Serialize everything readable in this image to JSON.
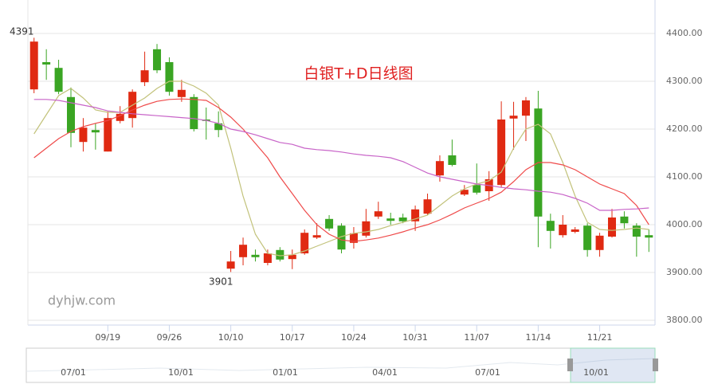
{
  "chart_data": {
    "type": "candlestick",
    "title": "白银T+D日线图",
    "watermark": "dyhjw.com",
    "high_label": "4391",
    "low_label": "3901",
    "categories": [
      null,
      null,
      null,
      null,
      null,
      null,
      "09/19",
      null,
      null,
      null,
      null,
      "09/26",
      null,
      null,
      null,
      null,
      "10/10",
      null,
      null,
      null,
      null,
      "10/17",
      null,
      null,
      null,
      null,
      "10/24",
      null,
      null,
      null,
      null,
      "10/31",
      null,
      null,
      null,
      null,
      "11/07",
      null,
      null,
      null,
      null,
      "11/14",
      null,
      null,
      null,
      null,
      "11/21",
      null,
      null,
      null,
      null
    ],
    "open": [
      4283,
      4340,
      4328,
      4267,
      4173,
      4198,
      4153,
      4217,
      4223,
      4298,
      4367,
      4340,
      4267,
      4267,
      4220,
      4212,
      3908,
      3932,
      3937,
      3920,
      3947,
      3928,
      3940,
      3973,
      4012,
      3998,
      3962,
      3977,
      4017,
      4013,
      4015,
      4007,
      4023,
      4103,
      4145,
      4063,
      4083,
      4070,
      4083,
      4222,
      4228,
      4243,
      4008,
      3978,
      3985,
      3998,
      3947,
      3975,
      4017,
      3998,
      3978
    ],
    "high": [
      4391,
      4367,
      4345,
      4287,
      4223,
      4212,
      4237,
      4248,
      4283,
      4362,
      4378,
      4350,
      4303,
      4273,
      4245,
      4237,
      3945,
      3973,
      3948,
      3948,
      3953,
      3948,
      3990,
      4003,
      4020,
      4003,
      3995,
      4033,
      4048,
      4025,
      4023,
      4040,
      4065,
      4145,
      4178,
      4083,
      4128,
      4112,
      4258,
      4257,
      4267,
      4280,
      4023,
      4020,
      3995,
      4003,
      3983,
      4033,
      4028,
      4003,
      3990
    ],
    "low": [
      4275,
      4303,
      4273,
      4162,
      4153,
      4157,
      4153,
      4212,
      4203,
      4290,
      4317,
      4270,
      4257,
      4195,
      4178,
      4183,
      3901,
      3915,
      3923,
      3915,
      3923,
      3907,
      3937,
      3970,
      3987,
      3940,
      3950,
      3973,
      4012,
      4000,
      4003,
      3987,
      4020,
      4090,
      4122,
      4060,
      4063,
      4050,
      4078,
      4157,
      4175,
      3953,
      3950,
      3973,
      3982,
      3933,
      3933,
      3973,
      3992,
      3933,
      3943
    ],
    "close": [
      4383,
      4335,
      4278,
      4192,
      4203,
      4193,
      4223,
      4232,
      4278,
      4323,
      4323,
      4278,
      4282,
      4200,
      4217,
      4198,
      3923,
      3958,
      3932,
      3940,
      3927,
      3937,
      3983,
      3978,
      3992,
      3948,
      3982,
      4007,
      4028,
      4008,
      4007,
      4032,
      4053,
      4133,
      4125,
      4073,
      4067,
      4095,
      4220,
      4228,
      4260,
      4017,
      3987,
      4000,
      3990,
      3947,
      3977,
      4015,
      4003,
      3975,
      3973
    ],
    "up_color": "#e02a12",
    "down_color": "#3aa523",
    "lines": [
      {
        "color": "#c2c27a",
        "values": [
          4190,
          4230,
          4270,
          4285,
          4265,
          4240,
          4235,
          4235,
          4250,
          4265,
          4285,
          4300,
          4300,
          4290,
          4275,
          4250,
          4160,
          4060,
          3980,
          3940,
          3935,
          3937,
          3945,
          3955,
          3965,
          3975,
          3982,
          3985,
          3990,
          3998,
          4005,
          4012,
          4020,
          4040,
          4060,
          4075,
          4085,
          4092,
          4110,
          4160,
          4200,
          4210,
          4190,
          4130,
          4060,
          4005,
          3990,
          3988,
          3990,
          3993,
          3990
        ]
      },
      {
        "color": "#ef4a4a",
        "values": [
          4140,
          4160,
          4180,
          4195,
          4205,
          4212,
          4218,
          4228,
          4240,
          4250,
          4258,
          4262,
          4263,
          4262,
          4260,
          4245,
          4225,
          4200,
          4170,
          4140,
          4100,
          4065,
          4030,
          4000,
          3980,
          3968,
          3965,
          3968,
          3972,
          3978,
          3985,
          3993,
          4000,
          4010,
          4022,
          4035,
          4045,
          4055,
          4068,
          4090,
          4115,
          4130,
          4130,
          4125,
          4115,
          4100,
          4085,
          4075,
          4065,
          4040,
          4000
        ]
      },
      {
        "color": "#c864c8",
        "values": [
          4262,
          4262,
          4260,
          4255,
          4250,
          4245,
          4238,
          4235,
          4232,
          4230,
          4228,
          4226,
          4224,
          4222,
          4218,
          4212,
          4200,
          4195,
          4188,
          4180,
          4172,
          4168,
          4160,
          4157,
          4155,
          4152,
          4148,
          4145,
          4143,
          4140,
          4132,
          4120,
          4108,
          4100,
          4095,
          4090,
          4085,
          4082,
          4078,
          4075,
          4073,
          4070,
          4068,
          4063,
          4055,
          4045,
          4030,
          4030,
          4032,
          4033,
          4035
        ]
      }
    ],
    "ylim": [
      3790,
      4470
    ],
    "yticks": [
      {
        "value": 3800,
        "label": "3800.00"
      },
      {
        "value": 3900,
        "label": "3900.00"
      },
      {
        "value": 4000,
        "label": "4000.00"
      },
      {
        "value": 4100,
        "label": "4100.00"
      },
      {
        "value": 4200,
        "label": "4200.00"
      },
      {
        "value": 4300,
        "label": "4300.00"
      },
      {
        "value": 4400,
        "label": "4400.00"
      }
    ],
    "grid": true
  },
  "navigator": {
    "labels": [
      "07/01",
      "10/01",
      "01/01",
      "04/01",
      "07/01",
      "10/01"
    ]
  }
}
